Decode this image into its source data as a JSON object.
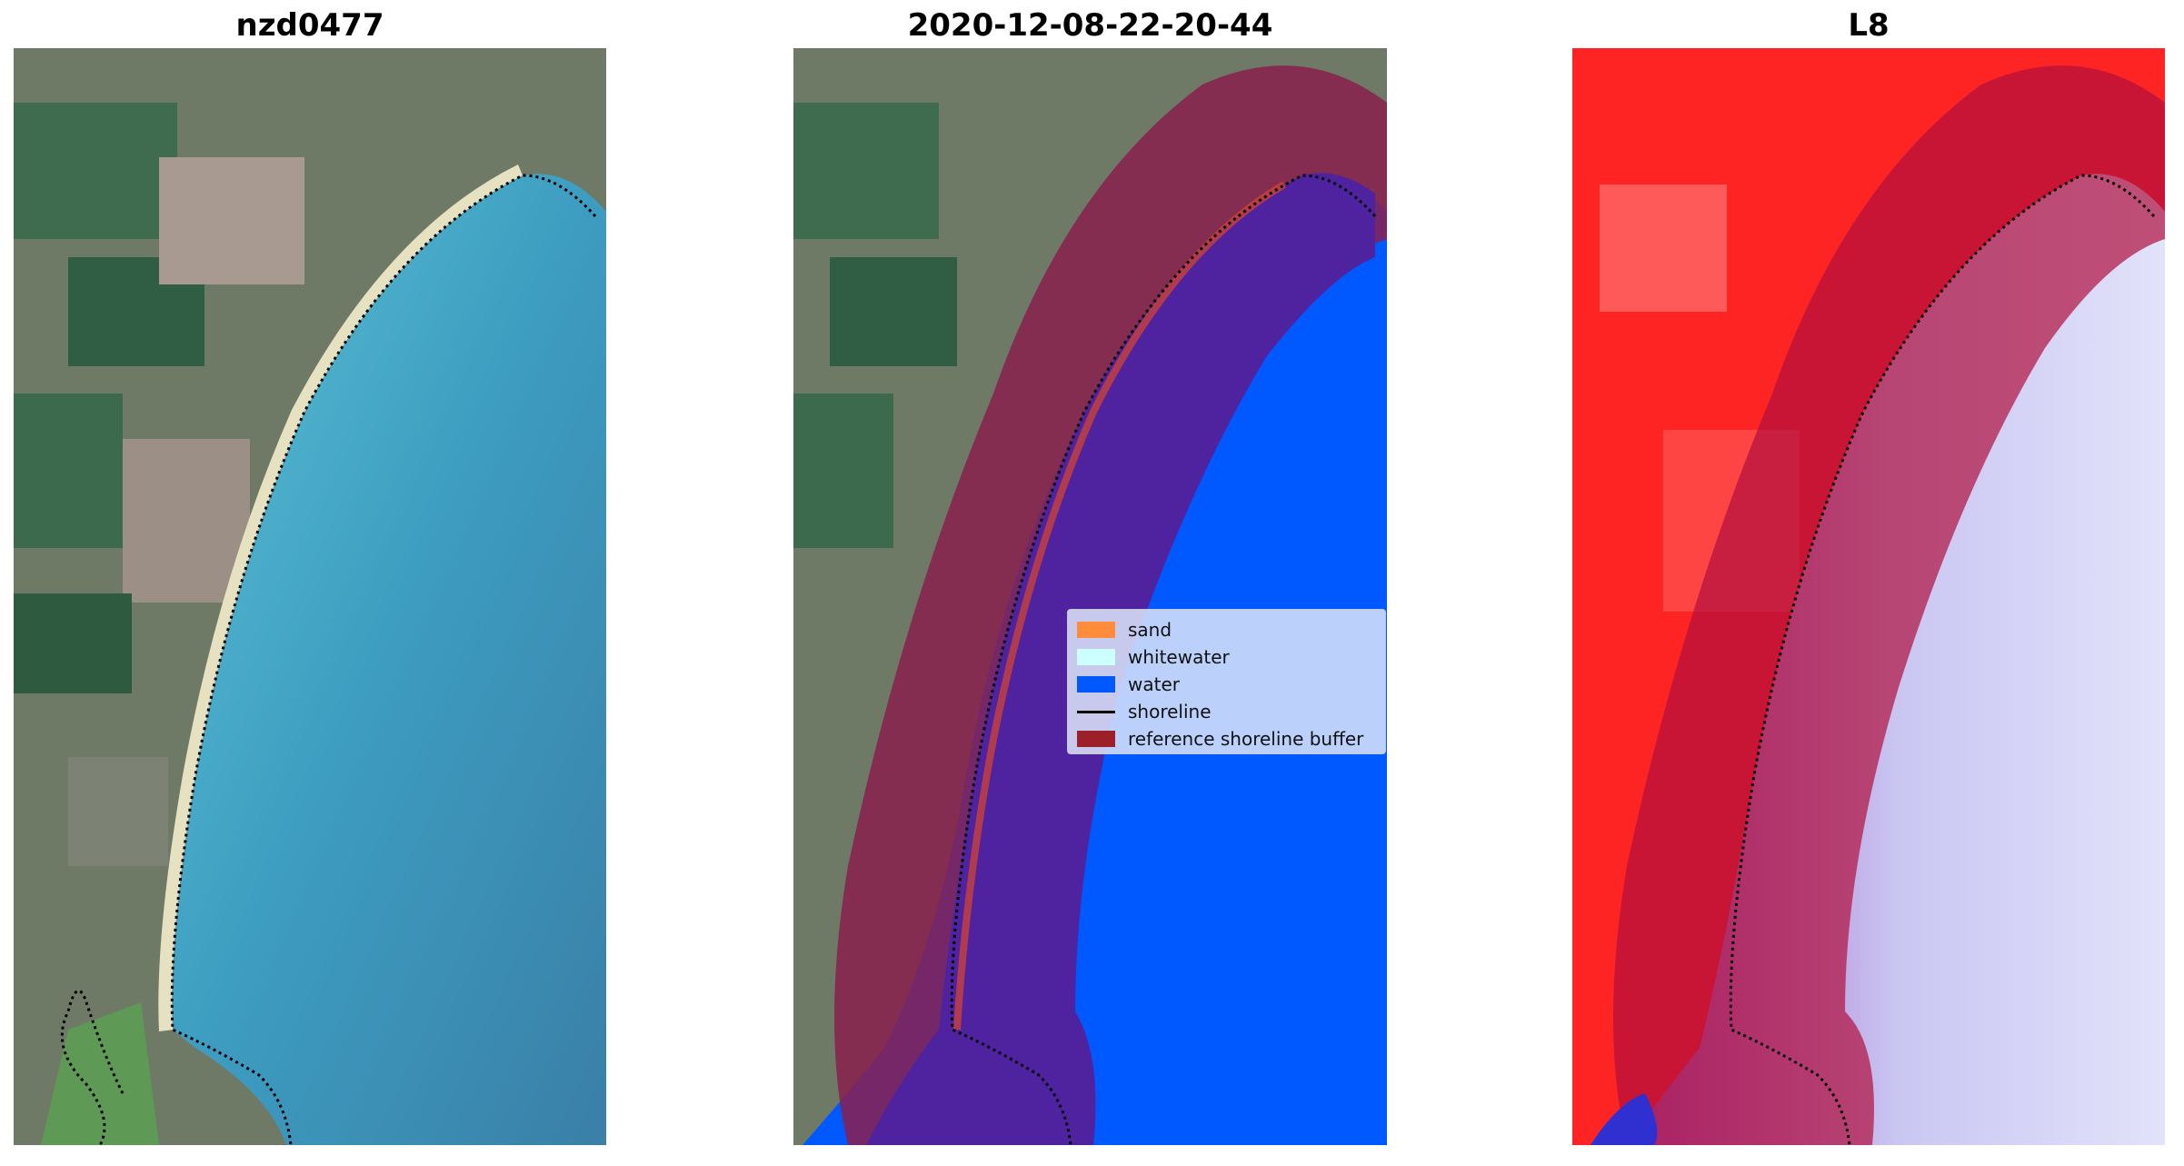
{
  "panels": [
    {
      "id": "satellite",
      "title": "nzd0477"
    },
    {
      "id": "classified",
      "title": "2020-12-08-22-20-44"
    },
    {
      "id": "index",
      "title": "L8"
    }
  ],
  "legend": {
    "items": [
      {
        "label": "sand",
        "color": "#ff8c3a",
        "kind": "patch"
      },
      {
        "label": "whitewater",
        "color": "#ccffff",
        "kind": "patch"
      },
      {
        "label": "water",
        "color": "#0059ff",
        "kind": "patch"
      },
      {
        "label": "shoreline",
        "color": "#000000",
        "kind": "line"
      },
      {
        "label": "reference shoreline buffer",
        "color": "#9c1f2a",
        "kind": "patch"
      }
    ]
  },
  "colors": {
    "land": "#6f7f6a",
    "sea": "#3fa8c8",
    "beach": "#e7e2c2",
    "buffer": "#8c1f4a",
    "water_class": "#0059ff",
    "water_in_buffer": "#4f22a0",
    "index_land": "#ff2020",
    "index_water": "#dcdcf8",
    "index_buffer": "#c0103e"
  }
}
